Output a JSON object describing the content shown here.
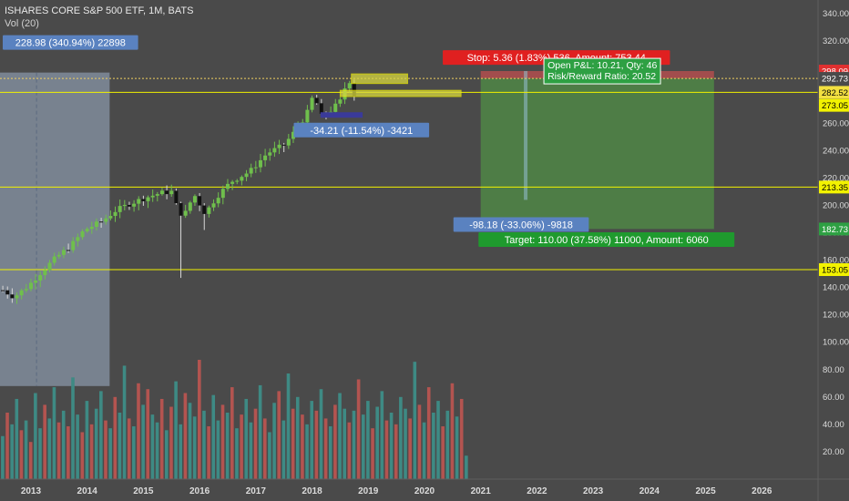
{
  "header": {
    "symbol_line": "ISHARES CORE S&P 500 ETF, 1M, BATS",
    "volume_label": "Vol (20)"
  },
  "colors": {
    "background": "#4a4a4a",
    "up_candle": "#6fbf4c",
    "down_candle": "#111111",
    "up_volume": "#3e8a84",
    "down_volume": "#b35450",
    "hline": "#f2f200",
    "stop_zone": "#b24e4e",
    "target_zone": "#4f8a45",
    "range_box": "#9eb0c8",
    "axis_text": "#dcdcdc"
  },
  "chart_data": {
    "type": "candlestick",
    "y_axis": {
      "range": [
        0,
        350
      ],
      "ticks": [
        20,
        40,
        60,
        80,
        100,
        120,
        140,
        160,
        180,
        200,
        220,
        240,
        260,
        280,
        300,
        320,
        340
      ],
      "tick_labels": [
        "20.00",
        "40.00",
        "60.00",
        "80.00",
        "100.00",
        "120.00",
        "140.00",
        "160.00",
        "180.00",
        "200.00",
        "220.00",
        "240.00",
        "260.00",
        "280.00",
        "300.00",
        "320.00",
        "340.00"
      ]
    },
    "x_axis": {
      "range": [
        2012.45,
        2027.0
      ],
      "ticks": [
        2013,
        2014,
        2015,
        2016,
        2017,
        2018,
        2019,
        2020,
        2021,
        2022,
        2023,
        2024,
        2025,
        2026
      ],
      "tick_labels": [
        "2013",
        "2014",
        "2015",
        "2016",
        "2017",
        "2018",
        "2019",
        "2020",
        "2021",
        "2022",
        "2023",
        "2024",
        "2025",
        "2026"
      ]
    },
    "price_anchors": [
      [
        2012.5,
        138
      ],
      [
        2012.7,
        133
      ],
      [
        2012.95,
        141
      ],
      [
        2013.2,
        152
      ],
      [
        2013.45,
        162
      ],
      [
        2013.7,
        170
      ],
      [
        2013.95,
        182
      ],
      [
        2014.25,
        188
      ],
      [
        2014.5,
        196
      ],
      [
        2014.75,
        201
      ],
      [
        2015.0,
        205
      ],
      [
        2015.3,
        209
      ],
      [
        2015.5,
        210
      ],
      [
        2015.62,
        196
      ],
      [
        2015.72,
        192
      ],
      [
        2015.9,
        208
      ],
      [
        2016.1,
        194
      ],
      [
        2016.3,
        206
      ],
      [
        2016.55,
        217
      ],
      [
        2016.9,
        225
      ],
      [
        2017.2,
        238
      ],
      [
        2017.5,
        244
      ],
      [
        2017.75,
        257
      ],
      [
        2017.92,
        268
      ],
      [
        2018.05,
        284
      ],
      [
        2018.12,
        264
      ],
      [
        2018.3,
        268
      ],
      [
        2018.5,
        276
      ],
      [
        2018.62,
        290
      ],
      [
        2018.72,
        292
      ],
      [
        2018.78,
        269
      ]
    ],
    "price_labels": [
      {
        "value": 298.09,
        "text": "298.09",
        "bg": "#e03030",
        "fg": "#ffffff"
      },
      {
        "value": 292.73,
        "text": "292.73",
        "bg": "#4a4a4a",
        "fg": "#ffffff"
      },
      {
        "value": 282.52,
        "text": "282.52",
        "bg": "#f2e040",
        "fg": "#000000"
      },
      {
        "value": 273.05,
        "text": "273.05",
        "bg": "#f2f200",
        "fg": "#000000"
      },
      {
        "value": 213.35,
        "text": "213.35",
        "bg": "#f2f200",
        "fg": "#000000"
      },
      {
        "value": 182.73,
        "text": "182.73",
        "bg": "#2ea043",
        "fg": "#ffffff"
      },
      {
        "value": 153.05,
        "text": "153.05",
        "bg": "#f2f200",
        "fg": "#000000"
      }
    ],
    "horizontal_lines": [
      282.52,
      213.35,
      153.05
    ],
    "dotted_line": 292.73,
    "range_measure": {
      "x0": 2012.45,
      "x1": 2014.4,
      "y0": 297,
      "y1": 68,
      "mid_x": 2013.1,
      "label": "228.98 (340.94%) 22898",
      "label_y": 319
    },
    "dip_measure": {
      "x0": 2018.15,
      "x1": 2018.9,
      "y": 266,
      "label": "-34.21 (-11.54%) -3421",
      "label_y": 255
    },
    "position": {
      "x0": 2021.0,
      "x1": 2025.15,
      "entry": 292.73,
      "stop": 298.09,
      "target": 182.73,
      "stop_label": "Stop: 5.36 (1.83%) 536, Amount: 753.44",
      "stop_label_y": 308,
      "target_label": "Target: 110.00 (37.58%) 11000, Amount: 6060",
      "target_label_y": 175,
      "pnl_line1": "Open P&L: 10.21, Qty: 46",
      "pnl_line2": "Risk/Reward Ratio: 20.52",
      "drop_label": "-98.18 (-33.06%) -9818",
      "drop_label_y": 186,
      "drop_x": 2021.8,
      "drop_bottom": 204
    },
    "highlight_boxes": [
      {
        "x0": 2018.7,
        "x1": 2019.7,
        "y0": 296,
        "y1": 289
      },
      {
        "x0": 2018.5,
        "x1": 2020.65,
        "y0": 284,
        "y1": 279.5
      }
    ],
    "volume_scale_top": 100,
    "volume_x_start": 2012.5,
    "volume_x_step": 0.0833,
    "volume_values": [
      22,
      34,
      28,
      41,
      25,
      30,
      19,
      44,
      26,
      38,
      31,
      47,
      29,
      35,
      27,
      52,
      33,
      24,
      40,
      28,
      36,
      45,
      30,
      26,
      42,
      34,
      58,
      31,
      27,
      49,
      38,
      46,
      33,
      29,
      41,
      25,
      37,
      50,
      28,
      44,
      39,
      32,
      61,
      35,
      27,
      43,
      30,
      38,
      34,
      47,
      26,
      33,
      41,
      29,
      36,
      48,
      31,
      24,
      39,
      45,
      30,
      54,
      36,
      42,
      33,
      28,
      40,
      35,
      46,
      31,
      27,
      38,
      44,
      36,
      29,
      35,
      51,
      33,
      40,
      26,
      37,
      45,
      30,
      34,
      28,
      42,
      36,
      31,
      60,
      38,
      29,
      47,
      34,
      40,
      27,
      35,
      49,
      32,
      41,
      12
    ],
    "volume_direction": [
      1,
      0,
      1,
      1,
      0,
      1,
      0,
      1,
      1,
      0,
      1,
      1,
      0,
      1,
      0,
      1,
      1,
      0,
      1,
      0,
      1,
      1,
      0,
      1,
      0,
      1,
      1,
      0,
      1,
      0,
      1,
      0,
      1,
      1,
      0,
      1,
      0,
      1,
      1,
      0,
      1,
      1,
      0,
      1,
      0,
      1,
      1,
      0,
      1,
      0,
      1,
      0,
      1,
      1,
      0,
      1,
      0,
      1,
      1,
      0,
      1,
      1,
      0,
      1,
      0,
      1,
      1,
      0,
      1,
      0,
      1,
      0,
      1,
      1,
      0,
      1,
      0,
      1,
      1,
      0,
      1,
      1,
      0,
      1,
      0,
      1,
      1,
      0,
      1,
      0,
      1,
      0,
      1,
      1,
      0,
      1,
      0,
      1,
      0,
      1
    ]
  }
}
